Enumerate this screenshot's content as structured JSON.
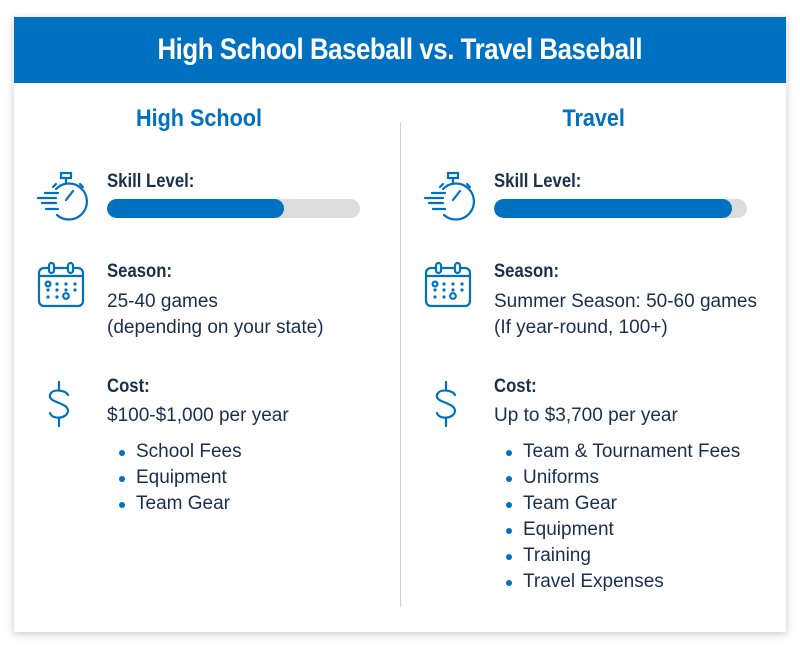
{
  "title": "High School Baseball vs. Travel Baseball",
  "colors": {
    "accent": "#0070c0",
    "text": "#1a2e4f",
    "track": "#dcdcdc"
  },
  "columns": [
    {
      "title": "High School",
      "skill": {
        "label": "Skill Level:",
        "percent": 70,
        "icon": "stopwatch-icon"
      },
      "season": {
        "label": "Season:",
        "lines": [
          "25-40 games",
          "(depending on your state)"
        ],
        "icon": "calendar-icon"
      },
      "cost": {
        "label": "Cost:",
        "value": "$100-$1,000 per year",
        "icon": "dollar-icon",
        "items": [
          "School Fees",
          "Equipment",
          "Team Gear"
        ]
      }
    },
    {
      "title": "Travel",
      "skill": {
        "label": "Skill Level:",
        "percent": 94,
        "icon": "stopwatch-icon"
      },
      "season": {
        "label": "Season:",
        "lines": [
          "Summer Season: 50-60 games",
          "(If year-round, 100+)"
        ],
        "icon": "calendar-icon"
      },
      "cost": {
        "label": "Cost:",
        "value": "Up to $3,700 per year",
        "icon": "dollar-icon",
        "items": [
          "Team & Tournament Fees",
          "Uniforms",
          "Team Gear",
          "Equipment",
          "Training",
          "Travel Expenses"
        ]
      }
    }
  ]
}
